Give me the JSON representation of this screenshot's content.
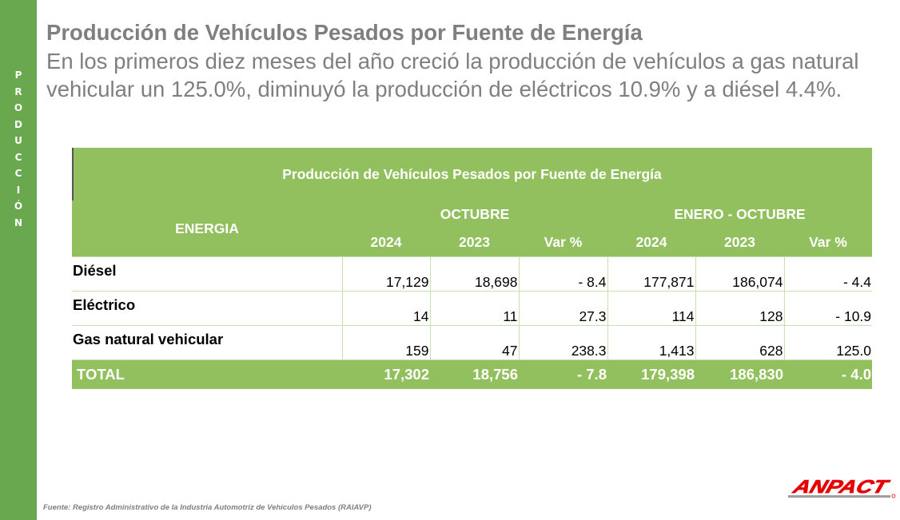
{
  "side_label": [
    "P",
    "R",
    "O",
    "D",
    "U",
    "C",
    "C",
    "I",
    "Ó",
    "N"
  ],
  "header": {
    "title": "Producción de Vehículos Pesados por Fuente de Energía",
    "subtitle": "En los primeros diez meses del año creció la producción de vehículos a gas natural vehicular un 125.0%, diminuyó la producción de eléctricos 10.9% y a diésel 4.4%."
  },
  "table": {
    "caption": "Producción de Vehículos Pesados por Fuente de Energía",
    "energy_header": "ENERGIA",
    "group_headers": [
      "OCTUBRE",
      "ENERO - OCTUBRE"
    ],
    "column_headers": [
      "2024",
      "2023",
      "Var %",
      "2024",
      "2023",
      "Var %"
    ],
    "rows": [
      {
        "label": "Diésel",
        "values": [
          "17,129",
          "18,698",
          "- 8.4",
          "177,871",
          "186,074",
          "- 4.4"
        ]
      },
      {
        "label": "Eléctrico",
        "values": [
          "14",
          "11",
          "27.3",
          "114",
          "128",
          "- 10.9"
        ]
      },
      {
        "label": "Gas natural vehicular",
        "values": [
          "159",
          "47",
          "238.3",
          "1,413",
          "628",
          "125.0"
        ]
      }
    ],
    "total": {
      "label": "TOTAL",
      "values": [
        "17,302",
        "18,756",
        "- 7.8",
        "179,398",
        "186,830",
        "- 4.0"
      ]
    }
  },
  "footer": {
    "source": "Fuente: Registro Administrativo de la Industria Automotriz de Vehículos Pesados (RAIAVP)"
  },
  "logo": {
    "text": "ANPACT",
    "color": "#e60000"
  },
  "colors": {
    "band": "#6aa84f",
    "table_header": "#92c05f",
    "title_gray": "#7f7f7f"
  }
}
